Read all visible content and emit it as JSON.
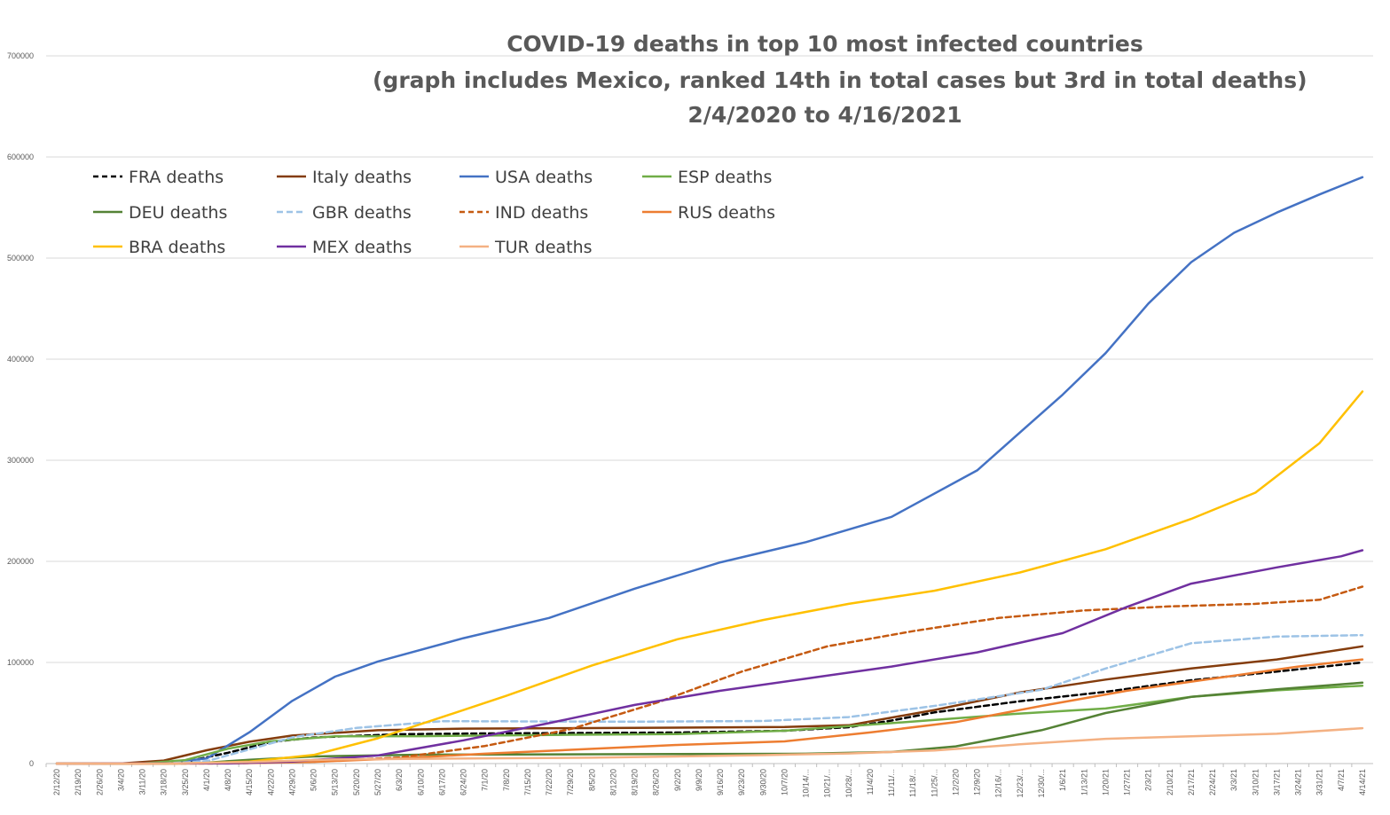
{
  "chart_data": {
    "type": "line",
    "title": [
      "COVID-19 deaths in top 10 most infected countries",
      "(graph includes Mexico, ranked 14th in total cases but 3rd in total deaths)",
      "2/4/2020 to 4/16/2021"
    ],
    "xlabel": "",
    "ylabel": "",
    "ylim": [
      0,
      700000
    ],
    "yticks": [
      0,
      100000,
      200000,
      300000,
      400000,
      500000,
      600000,
      700000
    ],
    "grid": true,
    "legend_position": "top-left",
    "x_tick_labels": [
      "2/12/20",
      "2/19/20",
      "2/26/20",
      "3/4/20",
      "3/11/20",
      "3/18/20",
      "3/25/20",
      "4/1/20",
      "4/8/20",
      "4/15/20",
      "4/22/20",
      "4/29/20",
      "5/6/20",
      "5/13/20",
      "5/20/20",
      "5/27/20",
      "6/3/20",
      "6/10/20",
      "6/17/20",
      "6/24/20",
      "7/1/20",
      "7/8/20",
      "7/15/20",
      "7/22/20",
      "7/29/20",
      "8/5/20",
      "8/12/20",
      "8/19/20",
      "8/26/20",
      "9/2/20",
      "9/9/20",
      "9/16/20",
      "9/23/20",
      "9/30/20",
      "10/7/20",
      "10/14/...",
      "10/21/...",
      "10/28/...",
      "11/4/20",
      "11/11/...",
      "11/18/...",
      "11/25/...",
      "12/2/20",
      "12/9/20",
      "12/16/...",
      "12/23/...",
      "12/30/...",
      "1/6/21",
      "1/13/21",
      "1/20/21",
      "1/27/21",
      "2/3/21",
      "2/10/21",
      "2/17/21",
      "2/24/21",
      "3/3/21",
      "3/10/21",
      "3/17/21",
      "3/24/21",
      "3/31/21",
      "4/7/21",
      "4/14/21"
    ],
    "series": [
      {
        "name": "FRA deaths",
        "color": "#000000",
        "dash": "6,4",
        "points": [
          [
            "2/12/20",
            0
          ],
          [
            "3/11/20",
            50
          ],
          [
            "3/25/20",
            1700
          ],
          [
            "4/8/20",
            10700
          ],
          [
            "4/22/20",
            21300
          ],
          [
            "5/6/20",
            25800
          ],
          [
            "6/3/20",
            29000
          ],
          [
            "7/1/20",
            29800
          ],
          [
            "9/2/20",
            30700
          ],
          [
            "10/7/20",
            32500
          ],
          [
            "10/28/...",
            36000
          ],
          [
            "11/11/...",
            42500
          ],
          [
            "11/25/...",
            50600
          ],
          [
            "12/23/...",
            61700
          ],
          [
            "1/20/21",
            71000
          ],
          [
            "2/17/21",
            82500
          ],
          [
            "3/17/21",
            91000
          ],
          [
            "4/14/21",
            100000
          ]
        ]
      },
      {
        "name": "Italy deaths",
        "color": "#843C0C",
        "dash": "",
        "points": [
          [
            "2/12/20",
            0
          ],
          [
            "3/4/20",
            100
          ],
          [
            "3/18/20",
            3000
          ],
          [
            "4/1/20",
            13200
          ],
          [
            "4/15/20",
            21600
          ],
          [
            "4/29/20",
            27700
          ],
          [
            "5/27/20",
            33000
          ],
          [
            "6/24/20",
            34600
          ],
          [
            "8/26/20",
            35400
          ],
          [
            "10/7/20",
            36100
          ],
          [
            "10/28/...",
            37900
          ],
          [
            "11/25/...",
            53000
          ],
          [
            "12/23/...",
            70400
          ],
          [
            "1/20/21",
            83100
          ],
          [
            "2/17/21",
            94000
          ],
          [
            "3/17/21",
            103000
          ],
          [
            "4/14/21",
            116000
          ]
        ]
      },
      {
        "name": "USA deaths",
        "color": "#4472C4",
        "dash": "",
        "points": [
          [
            "2/12/20",
            0
          ],
          [
            "3/18/20",
            150
          ],
          [
            "4/1/20",
            5000
          ],
          [
            "4/15/20",
            31000
          ],
          [
            "4/29/20",
            62000
          ],
          [
            "5/13/20",
            86000
          ],
          [
            "5/27/20",
            101000
          ],
          [
            "6/24/20",
            124000
          ],
          [
            "7/22/20",
            144000
          ],
          [
            "8/19/20",
            173000
          ],
          [
            "9/16/20",
            199000
          ],
          [
            "10/14/...",
            219000
          ],
          [
            "11/11/...",
            244000
          ],
          [
            "12/9/20",
            290000
          ],
          [
            "1/6/21",
            365000
          ],
          [
            "1/20/21",
            406000
          ],
          [
            "2/3/21",
            455000
          ],
          [
            "2/17/21",
            496000
          ],
          [
            "3/3/21",
            525000
          ],
          [
            "3/17/21",
            545000
          ],
          [
            "3/31/21",
            563000
          ],
          [
            "4/14/21",
            580000
          ]
        ]
      },
      {
        "name": "ESP deaths",
        "color": "#70AD47",
        "dash": "",
        "points": [
          [
            "2/12/20",
            0
          ],
          [
            "3/11/20",
            50
          ],
          [
            "3/25/20",
            3400
          ],
          [
            "4/8/20",
            14700
          ],
          [
            "4/22/20",
            22000
          ],
          [
            "5/13/20",
            27000
          ],
          [
            "6/10/20",
            27100
          ],
          [
            "7/29/20",
            28500
          ],
          [
            "9/2/20",
            29200
          ],
          [
            "10/7/20",
            32500
          ],
          [
            "11/11/...",
            40000
          ],
          [
            "12/23/...",
            49500
          ],
          [
            "1/20/21",
            54500
          ],
          [
            "2/17/21",
            66000
          ],
          [
            "3/17/21",
            72500
          ],
          [
            "4/14/21",
            77000
          ]
        ]
      },
      {
        "name": "DEU deaths",
        "color": "#548235",
        "dash": "",
        "points": [
          [
            "2/12/20",
            0
          ],
          [
            "3/18/20",
            20
          ],
          [
            "4/1/20",
            900
          ],
          [
            "4/15/20",
            3800
          ],
          [
            "5/6/20",
            7000
          ],
          [
            "6/10/20",
            8800
          ],
          [
            "8/19/20",
            9300
          ],
          [
            "10/14/...",
            9700
          ],
          [
            "11/11/...",
            11500
          ],
          [
            "12/2/20",
            17000
          ],
          [
            "12/30/...",
            33000
          ],
          [
            "1/20/21",
            50000
          ],
          [
            "2/17/21",
            66000
          ],
          [
            "3/17/21",
            73500
          ],
          [
            "4/14/21",
            80000
          ]
        ]
      },
      {
        "name": "GBR deaths",
        "color": "#9DC3E6",
        "dash": "7,4",
        "points": [
          [
            "2/12/20",
            0
          ],
          [
            "3/18/20",
            100
          ],
          [
            "4/1/20",
            2400
          ],
          [
            "4/15/20",
            14000
          ],
          [
            "4/29/20",
            26000
          ],
          [
            "5/20/20",
            35300
          ],
          [
            "6/17/20",
            41900
          ],
          [
            "8/19/20",
            41400
          ],
          [
            "9/30/20",
            42100
          ],
          [
            "10/28/...",
            46000
          ],
          [
            "11/25/...",
            57000
          ],
          [
            "12/30/...",
            73000
          ],
          [
            "1/20/21",
            94000
          ],
          [
            "2/17/21",
            119000
          ],
          [
            "3/17/21",
            125600
          ],
          [
            "4/14/21",
            127000
          ]
        ]
      },
      {
        "name": "IND deaths",
        "color": "#C55A11",
        "dash": "6,4",
        "points": [
          [
            "2/12/20",
            0
          ],
          [
            "4/8/20",
            150
          ],
          [
            "5/6/20",
            1800
          ],
          [
            "6/3/20",
            6000
          ],
          [
            "7/1/20",
            17400
          ],
          [
            "7/29/20",
            34000
          ],
          [
            "8/26/20",
            60000
          ],
          [
            "9/23/20",
            91000
          ],
          [
            "10/21/...",
            116000
          ],
          [
            "11/18/...",
            131000
          ],
          [
            "12/16/...",
            144000
          ],
          [
            "1/13/21",
            151500
          ],
          [
            "2/10/21",
            155400
          ],
          [
            "3/10/21",
            158000
          ],
          [
            "3/31/21",
            162000
          ],
          [
            "4/14/21",
            175000
          ]
        ]
      },
      {
        "name": "RUS deaths",
        "color": "#ED7D31",
        "dash": "",
        "points": [
          [
            "2/12/20",
            0
          ],
          [
            "4/8/20",
            60
          ],
          [
            "5/6/20",
            1700
          ],
          [
            "6/3/20",
            5200
          ],
          [
            "7/1/20",
            9700
          ],
          [
            "8/5/20",
            14600
          ],
          [
            "9/2/20",
            18400
          ],
          [
            "10/7/20",
            21900
          ],
          [
            "11/4/20",
            30800
          ],
          [
            "12/2/20",
            41000
          ],
          [
            "12/30/...",
            57000
          ],
          [
            "1/27/21",
            72000
          ],
          [
            "2/24/21",
            84000
          ],
          [
            "3/24/21",
            96000
          ],
          [
            "4/14/21",
            103000
          ]
        ]
      },
      {
        "name": "BRA deaths",
        "color": "#FFC000",
        "dash": "",
        "points": [
          [
            "2/12/20",
            0
          ],
          [
            "3/25/20",
            50
          ],
          [
            "4/15/20",
            1900
          ],
          [
            "5/6/20",
            8500
          ],
          [
            "5/27/20",
            25000
          ],
          [
            "6/17/20",
            46000
          ],
          [
            "7/8/20",
            67000
          ],
          [
            "8/5/20",
            97000
          ],
          [
            "9/2/20",
            123000
          ],
          [
            "9/30/20",
            142000
          ],
          [
            "10/28/...",
            158000
          ],
          [
            "11/25/...",
            171000
          ],
          [
            "12/23/...",
            189000
          ],
          [
            "1/20/21",
            212000
          ],
          [
            "2/17/21",
            242000
          ],
          [
            "3/10/21",
            268000
          ],
          [
            "3/31/21",
            317000
          ],
          [
            "4/14/21",
            368000
          ]
        ]
      },
      {
        "name": "MEX deaths",
        "color": "#7030A0",
        "dash": "",
        "points": [
          [
            "2/12/20",
            0
          ],
          [
            "4/8/20",
            140
          ],
          [
            "4/29/20",
            2000
          ],
          [
            "5/27/20",
            8000
          ],
          [
            "6/24/20",
            23000
          ],
          [
            "7/22/20",
            40000
          ],
          [
            "8/19/20",
            58000
          ],
          [
            "9/16/20",
            72000
          ],
          [
            "10/14/...",
            84000
          ],
          [
            "11/11/...",
            96000
          ],
          [
            "12/9/20",
            110000
          ],
          [
            "1/6/21",
            129000
          ],
          [
            "1/27/21",
            155000
          ],
          [
            "2/17/21",
            178000
          ],
          [
            "3/17/21",
            194000
          ],
          [
            "4/7/21",
            205000
          ],
          [
            "4/14/21",
            211000
          ]
        ]
      },
      {
        "name": "TUR deaths",
        "color": "#F4B183",
        "dash": "",
        "points": [
          [
            "2/12/20",
            0
          ],
          [
            "3/18/20",
            10
          ],
          [
            "4/15/20",
            1600
          ],
          [
            "5/13/20",
            4000
          ],
          [
            "6/10/20",
            4700
          ],
          [
            "8/5/20",
            5800
          ],
          [
            "9/30/20",
            8300
          ],
          [
            "10/28/...",
            10000
          ],
          [
            "11/25/...",
            13000
          ],
          [
            "12/23/...",
            19000
          ],
          [
            "1/20/21",
            24500
          ],
          [
            "2/17/21",
            27000
          ],
          [
            "3/17/21",
            29500
          ],
          [
            "4/14/21",
            35000
          ]
        ]
      }
    ]
  }
}
